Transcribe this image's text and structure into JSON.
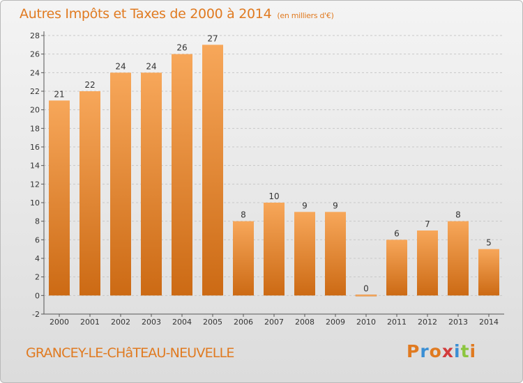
{
  "header": {
    "title": "Autres Impôts et Taxes de 2000 à 2014",
    "unit": "(en milliers d'€)"
  },
  "footer": {
    "town": "GRANCEY-LE-CHâTEAU-NEUVELLE",
    "logo": "Proxiti"
  },
  "colors": {
    "accent": "#e07a20",
    "bar_light": "#f7a75a",
    "bar_dark": "#cc6a14",
    "logo": [
      "#e07a20",
      "#3a8fd4",
      "#e07a20",
      "#d23b3b",
      "#3a8fd4",
      "#8cc63f",
      "#e07a20"
    ]
  },
  "chart_data": {
    "type": "bar",
    "title": "Autres Impôts et Taxes de 2000 à 2014",
    "categories": [
      "2000",
      "2001",
      "2002",
      "2003",
      "2004",
      "2005",
      "2006",
      "2007",
      "2008",
      "2009",
      "2010",
      "2011",
      "2012",
      "2013",
      "2014"
    ],
    "values": [
      21,
      22,
      24,
      24,
      26,
      27,
      8,
      10,
      9,
      9,
      0,
      6,
      7,
      8,
      5
    ],
    "value_labels": [
      "21",
      "22",
      "24",
      "24",
      "26",
      "27",
      "8",
      "10",
      "9",
      "9",
      "0",
      "6",
      "7",
      "8",
      "5"
    ],
    "ylim": [
      -2,
      28
    ],
    "yticks": [
      "-2",
      "0",
      "2",
      "4",
      "6",
      "8",
      "10",
      "12",
      "14",
      "16",
      "18",
      "20",
      "22",
      "24",
      "26",
      "28"
    ],
    "grid": true
  }
}
